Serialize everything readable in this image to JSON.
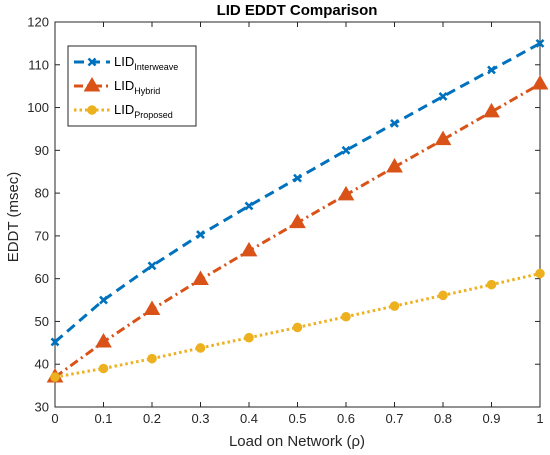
{
  "chart_data": {
    "type": "line",
    "title": "LID EDDT Comparison",
    "xlabel": "Load on Network (ρ)",
    "ylabel": "EDDT (msec)",
    "xlim": [
      0,
      1
    ],
    "ylim": [
      30,
      120
    ],
    "x_ticks": [
      "0",
      "0.1",
      "0.2",
      "0.3",
      "0.4",
      "0.5",
      "0.6",
      "0.7",
      "0.8",
      "0.9",
      "1"
    ],
    "y_ticks": [
      "30",
      "40",
      "50",
      "60",
      "70",
      "80",
      "90",
      "100",
      "110",
      "120"
    ],
    "grid": false,
    "legend_position": "top-left",
    "x": [
      0,
      0.1,
      0.2,
      0.3,
      0.4,
      0.5,
      0.6,
      0.7,
      0.8,
      0.9,
      1
    ],
    "series": [
      {
        "name_main": "LID",
        "name_sub": "Interweave",
        "color": "#0072BD",
        "line_style": "dashed",
        "marker": "x",
        "values": [
          45.2,
          55.0,
          63.0,
          70.3,
          77.0,
          83.5,
          90.0,
          96.3,
          102.6,
          108.8,
          115.0
        ]
      },
      {
        "name_main": "LID",
        "name_sub": "Hybrid",
        "color": "#D95319",
        "line_style": "dash-dot",
        "marker": "triangle",
        "values": [
          37.0,
          45.2,
          52.8,
          59.8,
          66.5,
          73.1,
          79.6,
          86.1,
          92.5,
          99.0,
          105.5
        ]
      },
      {
        "name_main": "LID",
        "name_sub": "Proposed",
        "color": "#EDB120",
        "line_style": "dotted",
        "marker": "circle",
        "values": [
          37.0,
          39.0,
          41.3,
          43.8,
          46.2,
          48.6,
          51.1,
          53.6,
          56.1,
          58.6,
          61.2
        ]
      }
    ]
  }
}
